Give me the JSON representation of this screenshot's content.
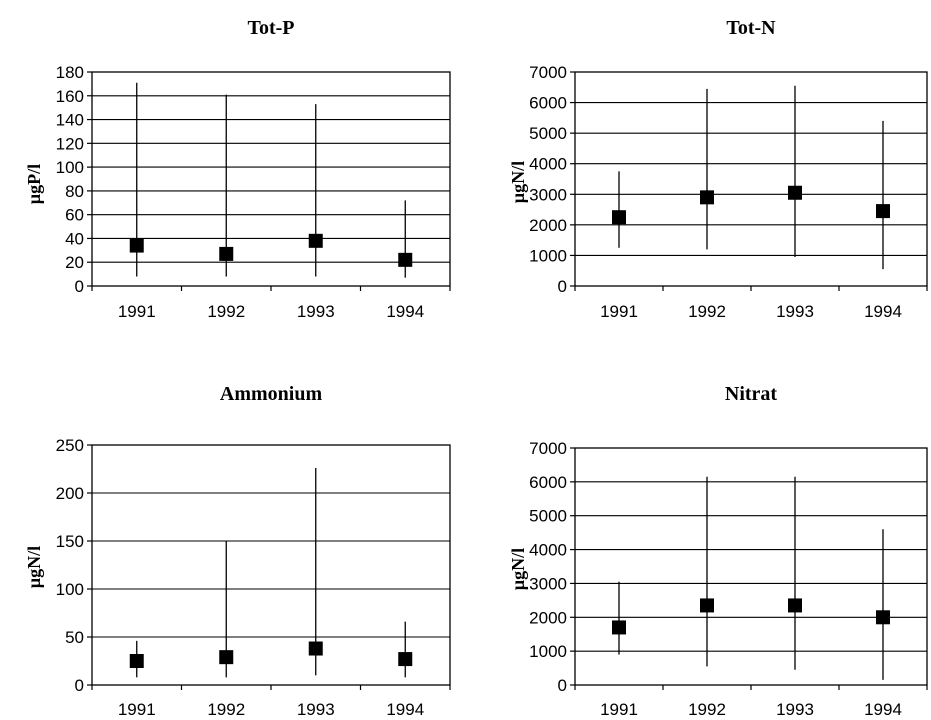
{
  "chart_data": [
    {
      "type": "scatter",
      "title": "Tot-P",
      "ylabel": "µgP/l",
      "xlabel": "",
      "categories": [
        "1991",
        "1992",
        "1993",
        "1994"
      ],
      "ylim": [
        0,
        180
      ],
      "yticks": [
        0,
        20,
        40,
        60,
        80,
        100,
        120,
        140,
        160,
        180
      ],
      "grid": true,
      "series": [
        {
          "values": [
            34,
            27,
            38,
            22
          ],
          "min": [
            8,
            8,
            8,
            7
          ],
          "max": [
            171,
            161,
            153,
            72
          ]
        }
      ]
    },
    {
      "type": "scatter",
      "title": "Tot-N",
      "ylabel": "µgN/l",
      "xlabel": "",
      "categories": [
        "1991",
        "1992",
        "1993",
        "1994"
      ],
      "ylim": [
        0,
        7000
      ],
      "yticks": [
        0,
        1000,
        2000,
        3000,
        4000,
        5000,
        6000,
        7000
      ],
      "grid": true,
      "series": [
        {
          "values": [
            2250,
            2900,
            3050,
            2450
          ],
          "min": [
            1250,
            1200,
            950,
            550
          ],
          "max": [
            3750,
            6450,
            6550,
            5400
          ]
        }
      ]
    },
    {
      "type": "scatter",
      "title": "Ammonium",
      "ylabel": "µgN/l",
      "xlabel": "",
      "categories": [
        "1991",
        "1992",
        "1993",
        "1994"
      ],
      "ylim": [
        0,
        250
      ],
      "yticks": [
        0,
        50,
        100,
        150,
        200,
        250
      ],
      "grid": true,
      "series": [
        {
          "values": [
            25,
            29,
            38,
            27
          ],
          "min": [
            8,
            8,
            10,
            8
          ],
          "max": [
            46,
            150,
            226,
            66
          ]
        }
      ]
    },
    {
      "type": "scatter",
      "title": "Nitrat",
      "ylabel": "µgN/l",
      "xlabel": "",
      "categories": [
        "1991",
        "1992",
        "1993",
        "1994"
      ],
      "ylim": [
        0,
        7000
      ],
      "yticks": [
        0,
        1000,
        2000,
        3000,
        4000,
        5000,
        6000,
        7000
      ],
      "grid": true,
      "series": [
        {
          "values": [
            1700,
            2350,
            2350,
            2000
          ],
          "min": [
            900,
            550,
            450,
            150
          ],
          "max": [
            3050,
            6150,
            6150,
            4600
          ]
        }
      ]
    }
  ]
}
